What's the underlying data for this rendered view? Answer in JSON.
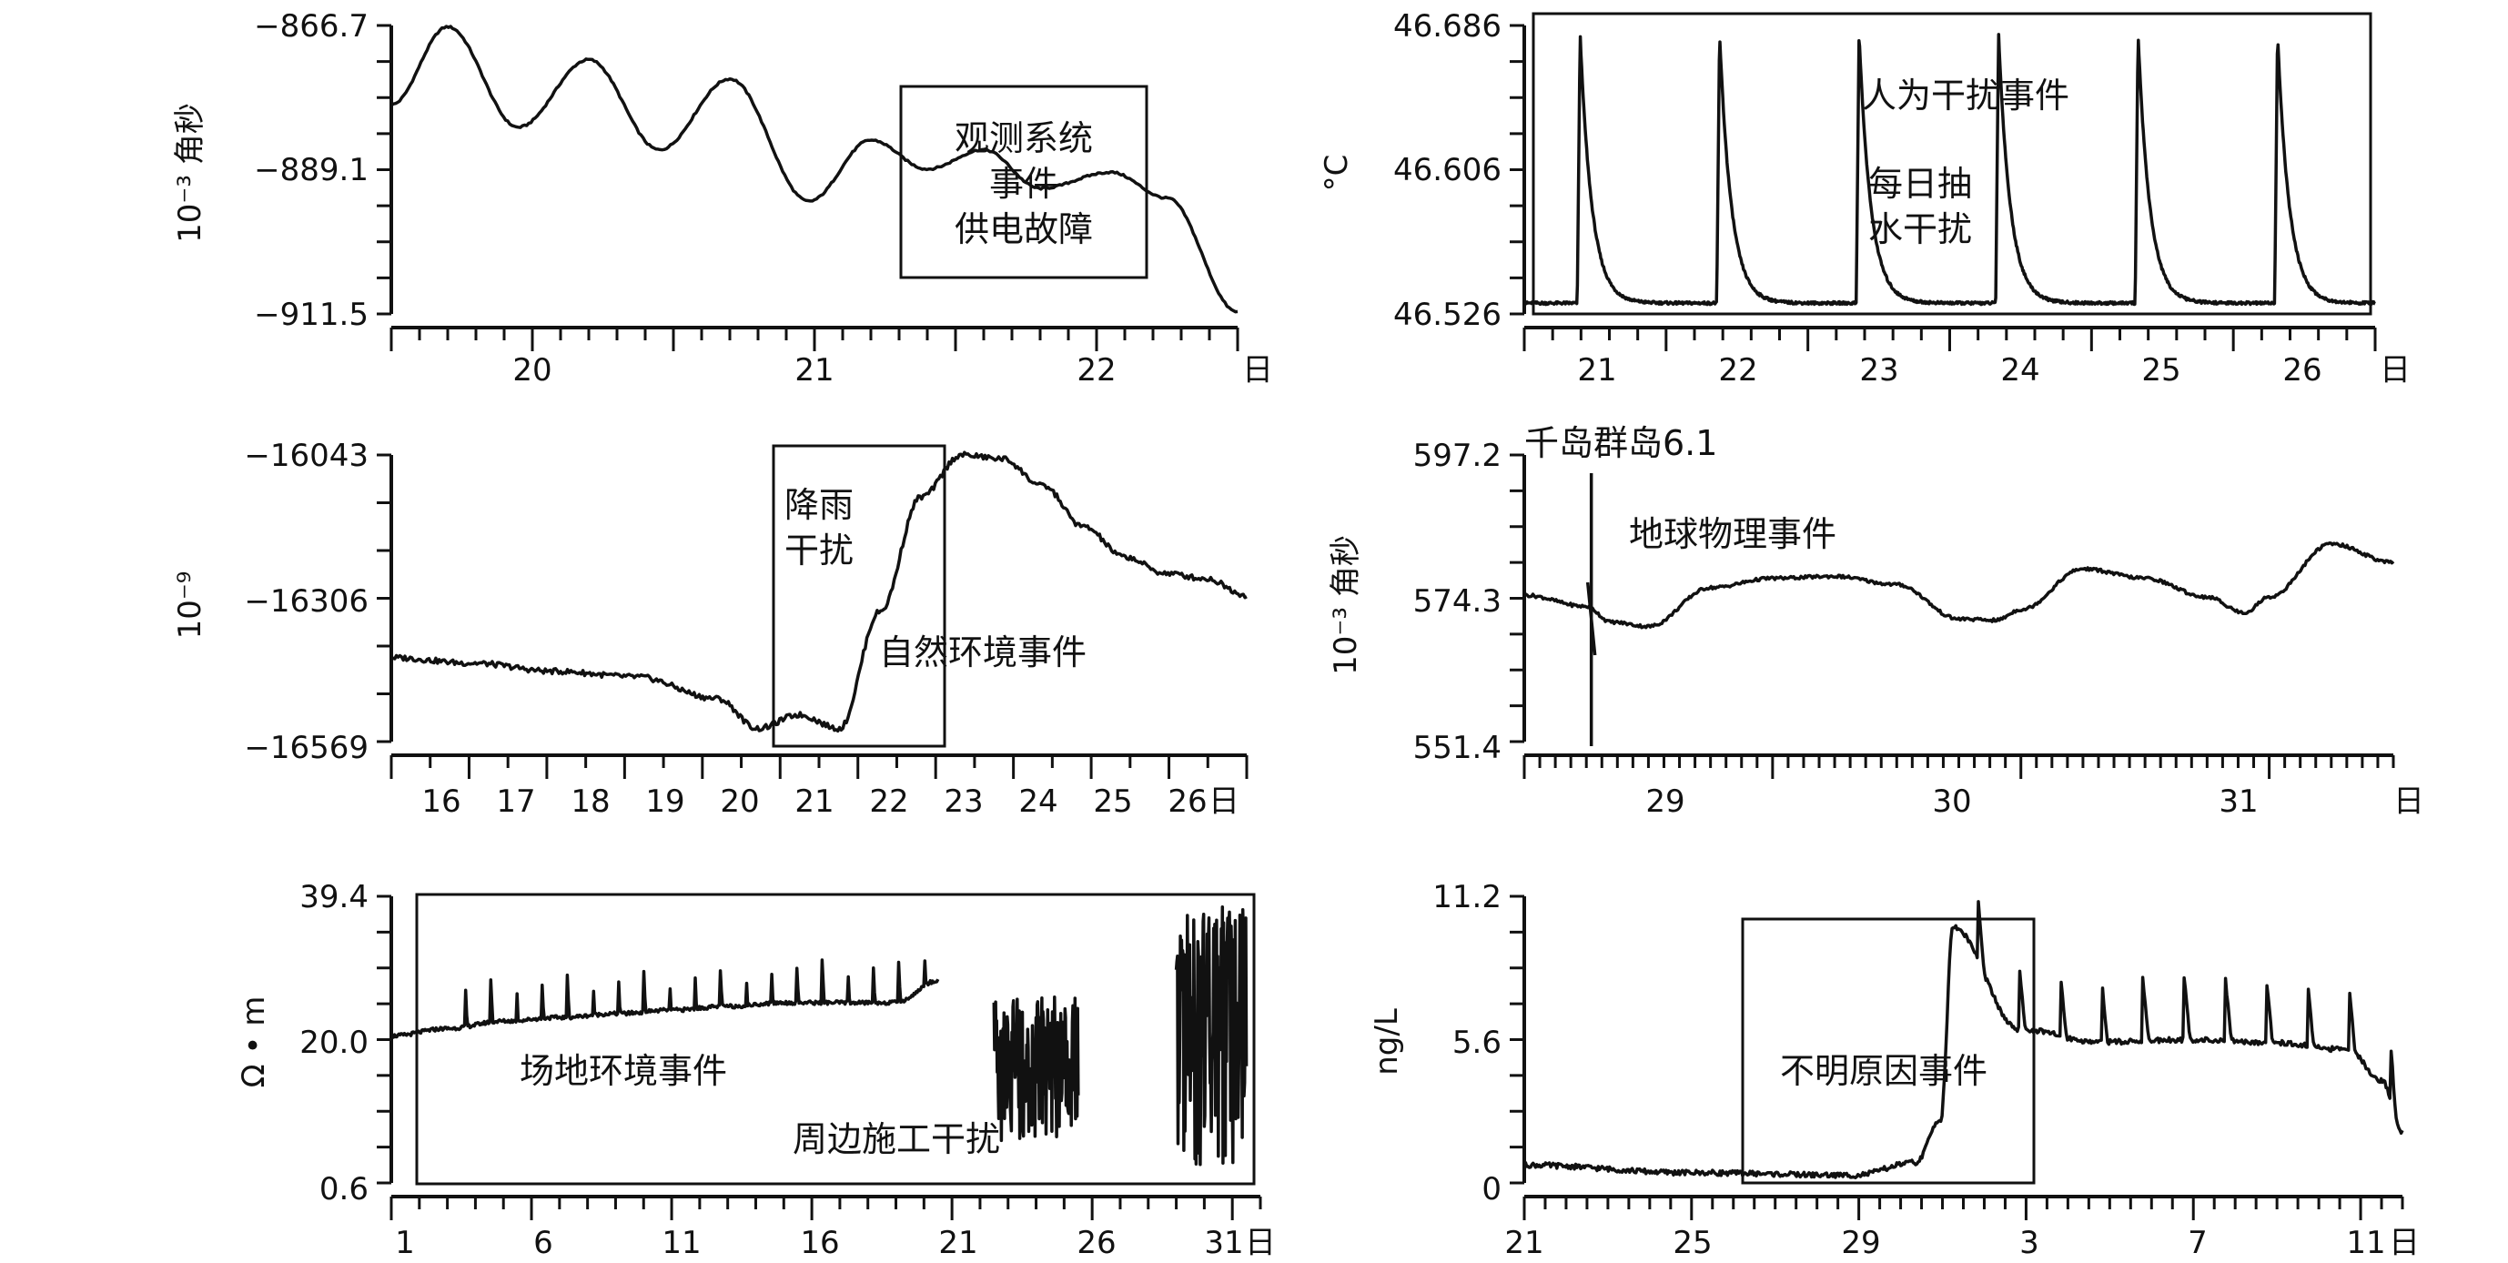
{
  "panels": [
    {
      "id": "p1",
      "ylabel": "10⁻³ 角秒",
      "unit": "日",
      "yticks": [
        "−866.7",
        "−889.1",
        "−911.5"
      ],
      "xticks": [
        "20",
        "21",
        "22"
      ],
      "annotations": [
        "观测系统",
        "事件",
        "供电故障"
      ],
      "chart_data": {
        "type": "line",
        "ylim": [
          -911.5,
          -866.7
        ],
        "x": [
          19.5,
          19.7,
          19.95,
          20.2,
          20.45,
          20.7,
          20.98,
          21.2,
          21.4,
          21.6,
          21.8,
          22.05,
          22.25,
          22.5
        ],
        "y": [
          -879.0,
          -866.9,
          -882.5,
          -872.0,
          -886.0,
          -875.0,
          -894.0,
          -884.5,
          -889.0,
          -886.0,
          -892.0,
          -889.5,
          -893.5,
          -911.2
        ]
      }
    },
    {
      "id": "p2",
      "ylabel": "°C",
      "unit": "日",
      "yticks": [
        "46.686",
        "46.606",
        "46.526"
      ],
      "xticks": [
        "21",
        "22",
        "23",
        "24",
        "25",
        "26"
      ],
      "annotations": [
        "人为干扰事件",
        "每日抽",
        "水干扰"
      ],
      "chart_data": {
        "type": "line",
        "ylim": [
          46.526,
          46.686
        ],
        "spike_days": [
          20.8,
          21.8,
          22.8,
          23.8,
          24.8,
          25.8
        ],
        "spike_peak": 46.682,
        "baseline": 46.532
      }
    },
    {
      "id": "p3",
      "ylabel": "10⁻⁹",
      "unit": "日",
      "yticks": [
        "−16043",
        "−16306",
        "−16569"
      ],
      "xticks": [
        "16",
        "17",
        "18",
        "19",
        "20",
        "21",
        "22",
        "23",
        "24",
        "25",
        "26"
      ],
      "annotations": [
        "降雨",
        "干扰",
        "自然环境事件"
      ],
      "chart_data": {
        "type": "line",
        "ylim": [
          -16569,
          -16043
        ],
        "x": [
          15.5,
          16.5,
          17.5,
          18.5,
          19.5,
          20.0,
          20.5,
          21.0,
          21.5,
          22.0,
          22.5,
          23.0,
          23.5,
          24.0,
          24.5,
          25.0,
          25.5,
          26.0
        ],
        "y": [
          -16415,
          -16425,
          -16440,
          -16450,
          -16490,
          -16545,
          -16520,
          -16545,
          -16330,
          -16120,
          -16043,
          -16050,
          -16100,
          -16175,
          -16230,
          -16260,
          -16270,
          -16300
        ]
      }
    },
    {
      "id": "p4",
      "ylabel": "10⁻³ 角秒",
      "unit": "日",
      "yticks": [
        "597.2",
        "574.3",
        "551.4"
      ],
      "xticks": [
        "29",
        "30",
        "31"
      ],
      "annotations": [
        "千岛群岛6.1",
        "地球物理事件"
      ],
      "chart_data": {
        "type": "line",
        "ylim": [
          551.4,
          597.2
        ],
        "x": [
          28.0,
          28.25,
          28.35,
          28.5,
          28.75,
          29.0,
          29.25,
          29.5,
          29.75,
          29.9,
          30.0,
          30.25,
          30.5,
          30.75,
          30.9,
          31.0,
          31.25,
          31.5
        ],
        "y": [
          574.8,
          573.0,
          570.5,
          569.8,
          576.0,
          577.5,
          577.8,
          576.5,
          571.0,
          570.8,
          572.5,
          579.0,
          577.5,
          574.5,
          572.0,
          574.5,
          583.0,
          580.0
        ]
      }
    },
    {
      "id": "p5",
      "ylabel": "Ω • m",
      "unit": "日",
      "yticks": [
        "39.4",
        "20.0",
        "0.6"
      ],
      "xticks": [
        "1",
        "6",
        "11",
        "16",
        "21",
        "26",
        "31"
      ],
      "annotations": [
        "场地环境事件",
        "周边施工干扰"
      ],
      "chart_data": {
        "type": "line",
        "ylim": [
          0.6,
          39.4
        ],
        "x": [
          1,
          3,
          5,
          7,
          9,
          11,
          13,
          15,
          17,
          19,
          20.5
        ],
        "y": [
          20.5,
          21.5,
          22.5,
          23.0,
          23.5,
          24.0,
          24.5,
          25.0,
          25.0,
          25.0,
          28.0
        ]
      }
    },
    {
      "id": "p6",
      "ylabel": "ng/L",
      "unit": "日",
      "yticks": [
        "11.2",
        "5.6",
        "0"
      ],
      "xticks": [
        "21",
        "25",
        "29",
        "3",
        "7",
        "11"
      ],
      "annotations": [
        "不明原因事件"
      ],
      "chart_data": {
        "type": "line",
        "ylim": [
          0,
          11.2
        ],
        "x": [
          0,
          4,
          8,
          9.5,
          10.1,
          10.4,
          12,
          14,
          16,
          18,
          20,
          20.8,
          21.3
        ],
        "y": [
          0.7,
          0.4,
          0.3,
          0.8,
          2.5,
          10.0,
          6.0,
          5.5,
          5.6,
          5.5,
          5.2,
          4.0,
          2.0
        ]
      }
    }
  ]
}
